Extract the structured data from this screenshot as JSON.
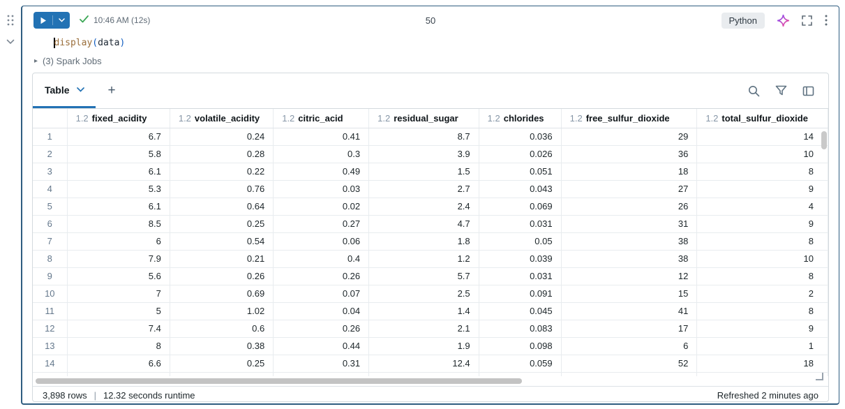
{
  "gutter": {
    "drag_handle_icon": "grip-dots",
    "collapse_icon": "chevron-down"
  },
  "cell": {
    "header": {
      "run_status_time": "10:46 AM (12s)",
      "cell_number": "50",
      "language_label": "Python"
    },
    "code": {
      "function_name": "display",
      "paren_open": "(",
      "argument": "data",
      "paren_close": ")"
    },
    "spark_jobs_label": "(3) Spark Jobs"
  },
  "results": {
    "toolbar": {
      "active_tab": "Table",
      "add_tab_label": "+"
    },
    "table": {
      "type_badge": "1.2",
      "columns": [
        "fixed_acidity",
        "volatile_acidity",
        "citric_acid",
        "residual_sugar",
        "chlorides",
        "free_sulfur_dioxide",
        "total_sulfur_dioxide"
      ],
      "rows": [
        [
          "6.7",
          "0.24",
          "0.41",
          "8.7",
          "0.036",
          "29",
          "14"
        ],
        [
          "5.8",
          "0.28",
          "0.3",
          "3.9",
          "0.026",
          "36",
          "10"
        ],
        [
          "6.1",
          "0.22",
          "0.49",
          "1.5",
          "0.051",
          "18",
          "8"
        ],
        [
          "5.3",
          "0.76",
          "0.03",
          "2.7",
          "0.043",
          "27",
          "9"
        ],
        [
          "6.1",
          "0.64",
          "0.02",
          "2.4",
          "0.069",
          "26",
          "4"
        ],
        [
          "8.5",
          "0.25",
          "0.27",
          "4.7",
          "0.031",
          "31",
          "9"
        ],
        [
          "6",
          "0.54",
          "0.06",
          "1.8",
          "0.05",
          "38",
          "8"
        ],
        [
          "7.9",
          "0.21",
          "0.4",
          "1.2",
          "0.039",
          "38",
          "10"
        ],
        [
          "5.6",
          "0.26",
          "0.26",
          "5.7",
          "0.031",
          "12",
          "8"
        ],
        [
          "7",
          "0.69",
          "0.07",
          "2.5",
          "0.091",
          "15",
          "2"
        ],
        [
          "5",
          "1.02",
          "0.04",
          "1.4",
          "0.045",
          "41",
          "8"
        ],
        [
          "7.4",
          "0.6",
          "0.26",
          "2.1",
          "0.083",
          "17",
          "9"
        ],
        [
          "8",
          "0.38",
          "0.44",
          "1.9",
          "0.098",
          "6",
          "1"
        ],
        [
          "6.6",
          "0.25",
          "0.31",
          "12.4",
          "0.059",
          "52",
          "18"
        ]
      ]
    },
    "status_bar": {
      "row_count": "3,898 rows",
      "separator": "|",
      "runtime": "12.32 seconds runtime",
      "refreshed": "Refreshed 2 minutes ago"
    }
  },
  "colors": {
    "accent_blue": "#2272B4",
    "selected_cell_border": "#2f5d80",
    "success_green": "#3BA755"
  }
}
